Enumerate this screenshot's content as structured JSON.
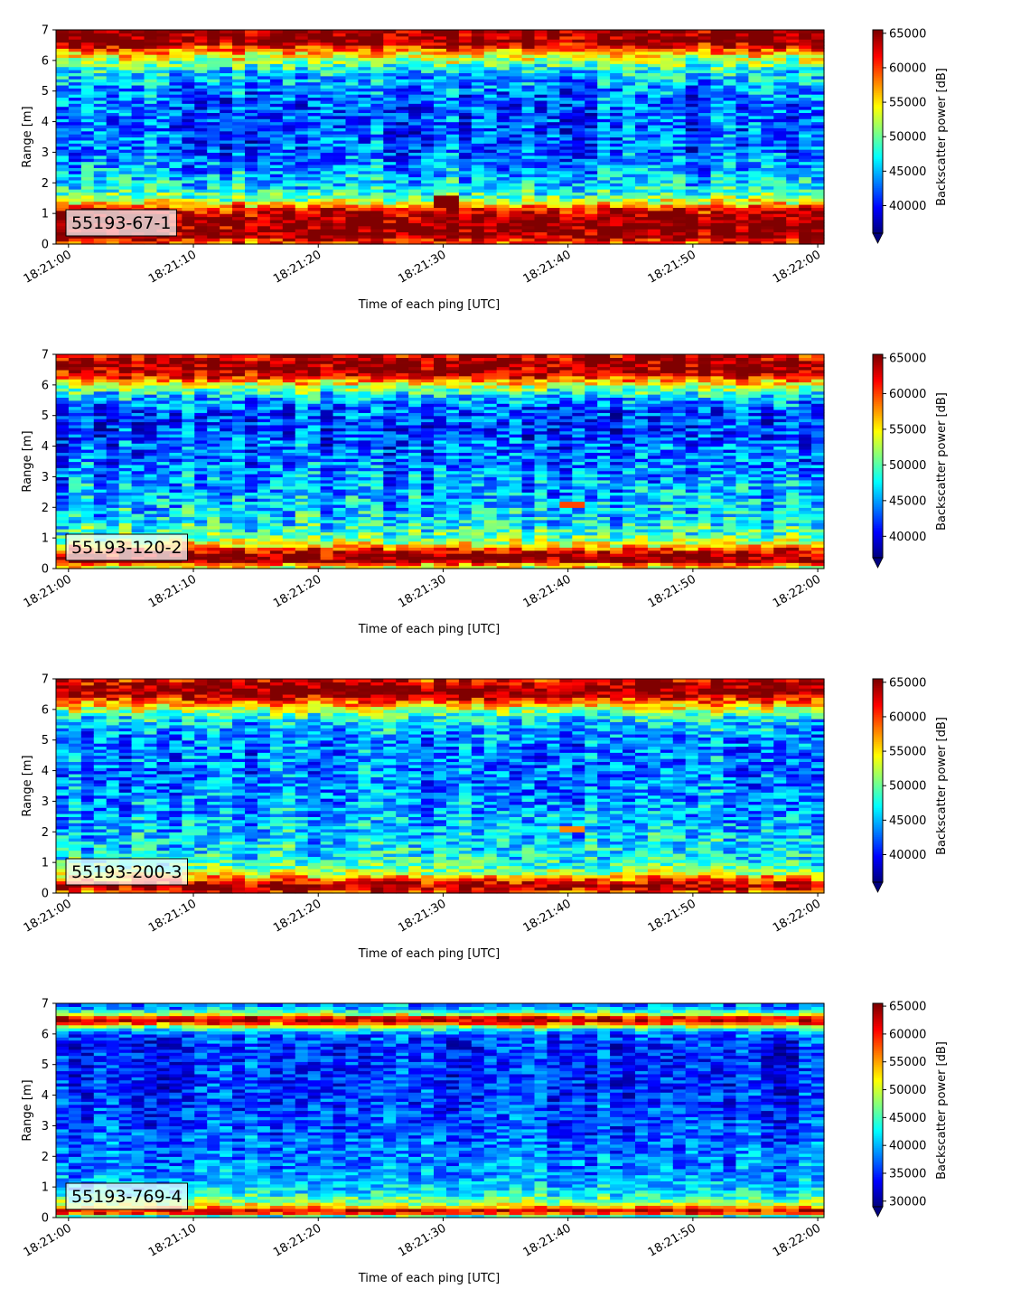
{
  "chart_data": [
    {
      "type": "heatmap",
      "label": "55193-67-1",
      "xlabel": "Time of each ping [UTC]",
      "ylabel": "Range [m]",
      "x_start": "18:21:00",
      "x_end": "18:22:00",
      "xticks": [
        "18:21:00",
        "18:21:10",
        "18:21:20",
        "18:21:30",
        "18:21:40",
        "18:21:50",
        "18:22:00"
      ],
      "ylim": [
        0,
        7
      ],
      "yticks": [
        "0",
        "1",
        "2",
        "3",
        "4",
        "5",
        "6",
        "7"
      ],
      "colormap": "jet",
      "colorbar_label": "Backscatter power [dB]",
      "clim": [
        36000,
        65500
      ],
      "colorbar_ticks": [
        "40000",
        "45000",
        "50000",
        "55000",
        "60000",
        "65000"
      ],
      "colorbar_extend": "min",
      "profile": {
        "range_m": [
          0.1,
          0.25,
          0.5,
          0.8,
          1.0,
          1.15,
          1.3,
          1.5,
          1.8,
          2.2,
          3.0,
          4.0,
          5.0,
          5.6,
          5.9,
          6.2,
          6.4,
          6.6,
          6.8,
          7.0
        ],
        "power": [
          60000,
          65500,
          65500,
          65500,
          64000,
          62000,
          56000,
          51000,
          47000,
          45000,
          42500,
          42000,
          43000,
          46000,
          50000,
          55000,
          60000,
          65500,
          65500,
          65500
        ]
      },
      "features": [
        {
          "description": "strong return near 18:21:30 at 1.2-1.6 m",
          "time": "18:21:30",
          "range_m": [
            1.2,
            1.6
          ],
          "power": 65500
        }
      ]
    },
    {
      "type": "heatmap",
      "label": "55193-120-2",
      "xlabel": "Time of each ping [UTC]",
      "ylabel": "Range [m]",
      "x_start": "18:21:00",
      "x_end": "18:22:00",
      "xticks": [
        "18:21:00",
        "18:21:10",
        "18:21:20",
        "18:21:30",
        "18:21:40",
        "18:21:50",
        "18:22:00"
      ],
      "ylim": [
        0,
        7
      ],
      "yticks": [
        "0",
        "1",
        "2",
        "3",
        "4",
        "5",
        "6",
        "7"
      ],
      "colormap": "jet",
      "colorbar_label": "Backscatter power [dB]",
      "clim": [
        37000,
        65500
      ],
      "colorbar_ticks": [
        "40000",
        "45000",
        "50000",
        "55000",
        "60000",
        "65000"
      ],
      "colorbar_extend": "min",
      "profile": {
        "range_m": [
          0.1,
          0.25,
          0.45,
          0.6,
          0.75,
          0.9,
          1.1,
          1.4,
          1.8,
          2.5,
          3.5,
          4.5,
          5.2,
          5.6,
          5.9,
          6.1,
          6.3,
          6.5,
          6.8,
          7.0
        ],
        "power": [
          55000,
          65500,
          65500,
          62000,
          56000,
          53000,
          50000,
          48000,
          46500,
          45500,
          44000,
          42500,
          43000,
          46000,
          51000,
          56000,
          62000,
          65500,
          65500,
          62000
        ]
      },
      "features": [
        {
          "description": "isolated bright cells near 18:21:40 at about 2.1 m",
          "time": "18:21:40",
          "range_m": [
            2.0,
            2.2
          ],
          "power": 60000
        }
      ]
    },
    {
      "type": "heatmap",
      "label": "55193-200-3",
      "xlabel": "Time of each ping [UTC]",
      "ylabel": "Range [m]",
      "x_start": "18:21:00",
      "x_end": "18:22:00",
      "xticks": [
        "18:21:00",
        "18:21:10",
        "18:21:20",
        "18:21:30",
        "18:21:40",
        "18:21:50",
        "18:22:00"
      ],
      "ylim": [
        0,
        7
      ],
      "yticks": [
        "0",
        "1",
        "2",
        "3",
        "4",
        "5",
        "6",
        "7"
      ],
      "colormap": "jet",
      "colorbar_label": "Backscatter power [dB]",
      "clim": [
        36000,
        65500
      ],
      "colorbar_ticks": [
        "40000",
        "45000",
        "50000",
        "55000",
        "60000",
        "65000"
      ],
      "colorbar_extend": "min",
      "profile": {
        "range_m": [
          0.05,
          0.2,
          0.35,
          0.5,
          0.7,
          0.9,
          1.1,
          1.5,
          2.0,
          3.0,
          4.0,
          5.0,
          5.6,
          5.9,
          6.1,
          6.3,
          6.5,
          6.7,
          6.9,
          7.0
        ],
        "power": [
          60000,
          65500,
          62000,
          58000,
          52000,
          49000,
          47500,
          46500,
          45500,
          44000,
          43000,
          43500,
          46000,
          50000,
          55000,
          60000,
          65500,
          65500,
          64000,
          61000
        ]
      },
      "features": [
        {
          "description": "isolated bright cell near 18:21:40 at about 2.1 m",
          "time": "18:21:40",
          "range_m": [
            2.0,
            2.2
          ],
          "power": 58000
        }
      ]
    },
    {
      "type": "heatmap",
      "label": "55193-769-4",
      "xlabel": "Time of each ping [UTC]",
      "ylabel": "Range [m]",
      "x_start": "18:21:00",
      "x_end": "18:22:00",
      "xticks": [
        "18:21:00",
        "18:21:10",
        "18:21:20",
        "18:21:30",
        "18:21:40",
        "18:21:50",
        "18:22:00"
      ],
      "ylim": [
        0,
        7
      ],
      "yticks": [
        "0",
        "1",
        "2",
        "3",
        "4",
        "5",
        "6",
        "7"
      ],
      "colormap": "jet",
      "colorbar_label": "Backscatter power [dB]",
      "clim": [
        29000,
        65500
      ],
      "colorbar_ticks": [
        "30000",
        "35000",
        "40000",
        "45000",
        "50000",
        "55000",
        "60000",
        "65000"
      ],
      "colorbar_extend": "min",
      "profile": {
        "range_m": [
          0.05,
          0.2,
          0.3,
          0.45,
          0.6,
          0.8,
          1.0,
          1.4,
          2.0,
          3.0,
          4.0,
          5.0,
          5.6,
          6.0,
          6.2,
          6.35,
          6.5,
          6.65,
          6.85,
          7.0
        ],
        "power": [
          45000,
          65500,
          58000,
          50000,
          46000,
          43000,
          41000,
          39000,
          38000,
          36500,
          35500,
          35000,
          35000,
          37000,
          45000,
          58000,
          65500,
          50000,
          40000,
          38000
        ]
      },
      "features": []
    }
  ]
}
